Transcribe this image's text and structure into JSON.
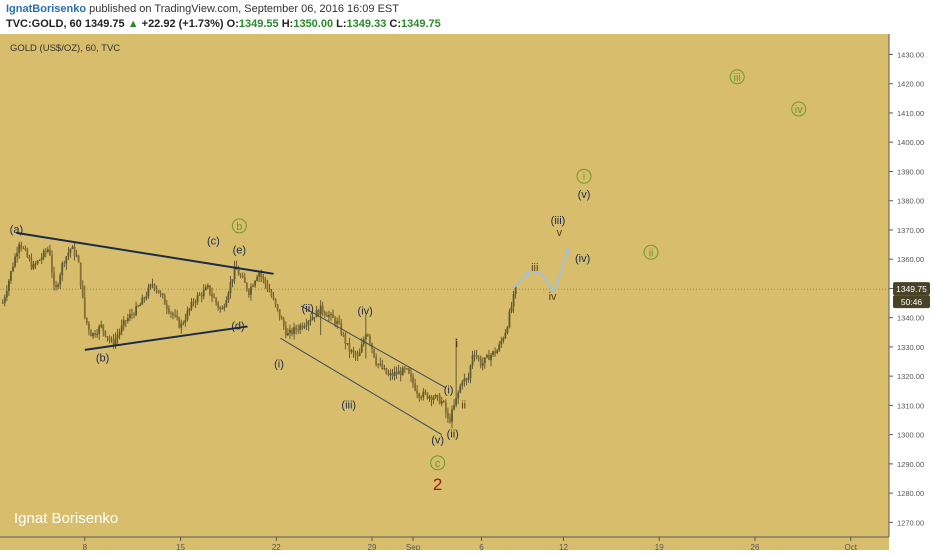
{
  "header": {
    "author": "IgnatBorisenko",
    "published_text": "published on TradingView.com, September 06, 2016 16:09 EST",
    "symbol": "TVC:GOLD, 60",
    "last": "1349.75",
    "change_arrow": "▲",
    "change": "+22.92 (+1.73%)",
    "o_label": "O:",
    "o_value": "1349.55",
    "h_label": "H:",
    "h_value": "1350.00",
    "l_label": "L:",
    "l_value": "1349.33",
    "c_label": "C:",
    "c_value": "1349.75"
  },
  "chart": {
    "title": "GOLD (US$/OZ), 60, TVC",
    "watermark": "Ignat Borisenko",
    "price_tag": "1349.75",
    "time_tag": "50:46",
    "colors": {
      "background": "#d8be6c",
      "axis_bg": "#ffffff",
      "candle": "#4a4226",
      "candle_up": "#5a5a2c",
      "candle_down": "#8a6a30",
      "trendline": "#1b2b4a",
      "channel": "#3a4a5a",
      "label_dark": "#1b2b4a",
      "label_green": "#6a9a2a",
      "label_brown": "#5a3a10",
      "label_red": "#a01a10",
      "projection": "#a0c0e0",
      "price_tag_bg": "#4a4226"
    }
  },
  "chart_data": {
    "type": "candlestick",
    "y_axis": {
      "ylim": [
        1265,
        1437
      ],
      "ticks": [
        1270,
        1280,
        1290,
        1300,
        1310,
        1320,
        1330,
        1340,
        1350,
        1360,
        1370,
        1380,
        1390,
        1400,
        1410,
        1420,
        1430
      ],
      "tick_labels": [
        "1270.00",
        "1280.00",
        "1290.00",
        "1300.00",
        "1310.00",
        "1320.00",
        "1330.00",
        "1340.00",
        "1350.00",
        "1360.00",
        "1370.00",
        "1380.00",
        "1390.00",
        "1400.00",
        "1410.00",
        "1420.00",
        "1430.00"
      ]
    },
    "x_axis": {
      "ticks": [
        "8",
        "15",
        "22",
        "29",
        "Sep",
        "6",
        "12",
        "19",
        "26",
        "Oct"
      ],
      "tick_day": [
        8,
        15,
        22,
        29,
        32,
        37,
        43,
        50,
        57,
        64
      ],
      "xlim_day": [
        1.8,
        66.8
      ]
    },
    "series": [
      {
        "kind": "price",
        "points": [
          [
            2,
            1345
          ],
          [
            3.2,
            1366
          ],
          [
            4.2,
            1357
          ],
          [
            5.4,
            1364
          ],
          [
            5.8,
            1348
          ],
          [
            6.4,
            1359
          ],
          [
            7,
            1364
          ],
          [
            7.5,
            1360
          ],
          [
            8,
            1340
          ],
          [
            8.5,
            1334
          ],
          [
            9.2,
            1337
          ],
          [
            10,
            1331
          ],
          [
            11,
            1339
          ],
          [
            12,
            1344
          ],
          [
            13,
            1352
          ],
          [
            14,
            1344
          ],
          [
            15,
            1337
          ],
          [
            16,
            1346
          ],
          [
            17,
            1350
          ],
          [
            18,
            1342
          ],
          [
            19,
            1357
          ],
          [
            20,
            1349
          ],
          [
            20.7,
            1356
          ],
          [
            21.5,
            1349
          ],
          [
            22.3,
            1340
          ],
          [
            22.8,
            1334
          ],
          [
            24,
            1338
          ],
          [
            25.3,
            1343
          ],
          [
            26.5,
            1338
          ],
          [
            27.3,
            1329
          ],
          [
            28,
            1326
          ],
          [
            28.6,
            1336
          ],
          [
            29.3,
            1325
          ],
          [
            30.2,
            1320
          ],
          [
            31.5,
            1322
          ],
          [
            32.4,
            1314
          ],
          [
            33.5,
            1313
          ],
          [
            34.2,
            1311
          ],
          [
            34.6,
            1304
          ],
          [
            35.1,
            1311
          ],
          [
            35.6,
            1319
          ],
          [
            36,
            1318
          ],
          [
            36.4,
            1329
          ],
          [
            37,
            1324
          ],
          [
            37.6,
            1327
          ],
          [
            38.2,
            1329
          ],
          [
            38.8,
            1336
          ],
          [
            39.5,
            1349.75
          ]
        ]
      }
    ],
    "annotations": {
      "wave_labels": [
        {
          "text": "(a)",
          "day": 3.0,
          "price": 1369,
          "color": "dark"
        },
        {
          "text": "(b)",
          "day": 9.3,
          "price": 1325,
          "color": "dark"
        },
        {
          "text": "(c)",
          "day": 17.4,
          "price": 1365,
          "color": "dark"
        },
        {
          "text": "b",
          "day": 19.3,
          "price": 1370,
          "color": "green",
          "circled": true
        },
        {
          "text": "(e)",
          "day": 19.3,
          "price": 1362,
          "color": "dark"
        },
        {
          "text": "(d)",
          "day": 19.2,
          "price": 1336,
          "color": "dark"
        },
        {
          "text": "(i)",
          "day": 22.2,
          "price": 1323,
          "color": "dark"
        },
        {
          "text": "(ii)",
          "day": 24.3,
          "price": 1342,
          "color": "dark"
        },
        {
          "text": "(iv)",
          "day": 28.5,
          "price": 1341,
          "color": "dark"
        },
        {
          "text": "(iii)",
          "day": 27.3,
          "price": 1309,
          "color": "dark"
        },
        {
          "text": "(i)",
          "day": 34.6,
          "price": 1314,
          "color": "dark"
        },
        {
          "text": "(ii)",
          "day": 34.9,
          "price": 1299,
          "color": "dark"
        },
        {
          "text": "(v)",
          "day": 33.8,
          "price": 1297,
          "color": "dark"
        },
        {
          "text": "c",
          "day": 33.8,
          "price": 1289,
          "color": "green",
          "circled": true
        },
        {
          "text": "2",
          "day": 33.8,
          "price": 1281,
          "color": "red",
          "big": true
        },
        {
          "text": "i",
          "day": 35.2,
          "price": 1330,
          "color": "brown"
        },
        {
          "text": "ii",
          "day": 35.7,
          "price": 1309,
          "color": "brown"
        },
        {
          "text": "iii",
          "day": 40.9,
          "price": 1356,
          "color": "brown"
        },
        {
          "text": "iv",
          "day": 42.2,
          "price": 1346,
          "color": "brown"
        },
        {
          "text": "v",
          "day": 42.7,
          "price": 1368,
          "color": "brown"
        },
        {
          "text": "(iii)",
          "day": 42.6,
          "price": 1372,
          "color": "dark"
        },
        {
          "text": "(iv)",
          "day": 44.4,
          "price": 1359,
          "color": "dark"
        },
        {
          "text": "(v)",
          "day": 44.5,
          "price": 1381,
          "color": "dark"
        },
        {
          "text": "i",
          "day": 44.5,
          "price": 1387,
          "color": "green",
          "circled": true
        },
        {
          "text": "ii",
          "day": 49.4,
          "price": 1361,
          "color": "green",
          "circled": true
        },
        {
          "text": "iii",
          "day": 55.7,
          "price": 1421,
          "color": "green",
          "circled": true
        },
        {
          "text": "iv",
          "day": 60.2,
          "price": 1410,
          "color": "green",
          "circled": true
        }
      ],
      "trendlines": [
        {
          "from": [
            3.0,
            1369
          ],
          "to": [
            21.8,
            1355
          ],
          "style": "thick"
        },
        {
          "from": [
            8.0,
            1329
          ],
          "to": [
            19.9,
            1337
          ],
          "style": "thick"
        },
        {
          "from": [
            23.8,
            1344
          ],
          "to": [
            34.4,
            1316
          ],
          "style": "thin"
        },
        {
          "from": [
            22.3,
            1333
          ],
          "to": [
            34.1,
            1300
          ],
          "style": "thin"
        }
      ],
      "projection_path": [
        [
          39.3,
          1350
        ],
        [
          40.6,
          1356
        ],
        [
          41.4,
          1355
        ],
        [
          42.3,
          1349
        ],
        [
          43.4,
          1364
        ]
      ]
    }
  }
}
